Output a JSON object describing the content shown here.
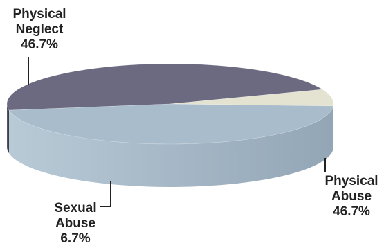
{
  "chart_data": {
    "type": "pie",
    "categories": [
      "Physical Neglect",
      "Physical Abuse",
      "Sexual Abuse"
    ],
    "values": [
      46.7,
      46.7,
      6.7
    ],
    "unit": "%",
    "colors": {
      "Physical Neglect": "#a9bccb",
      "Physical Abuse": "#6b6a80",
      "Sexual Abuse": "#e4e2d0"
    },
    "style": "3d",
    "labels": [
      {
        "line1": "Physical",
        "line2": "Neglect",
        "value": "46.7%"
      },
      {
        "line1": "Physical",
        "line2": "Abuse",
        "value": "46.7%"
      },
      {
        "line1": "Sexual",
        "line2": "Abuse",
        "value": "6.7%"
      }
    ]
  }
}
